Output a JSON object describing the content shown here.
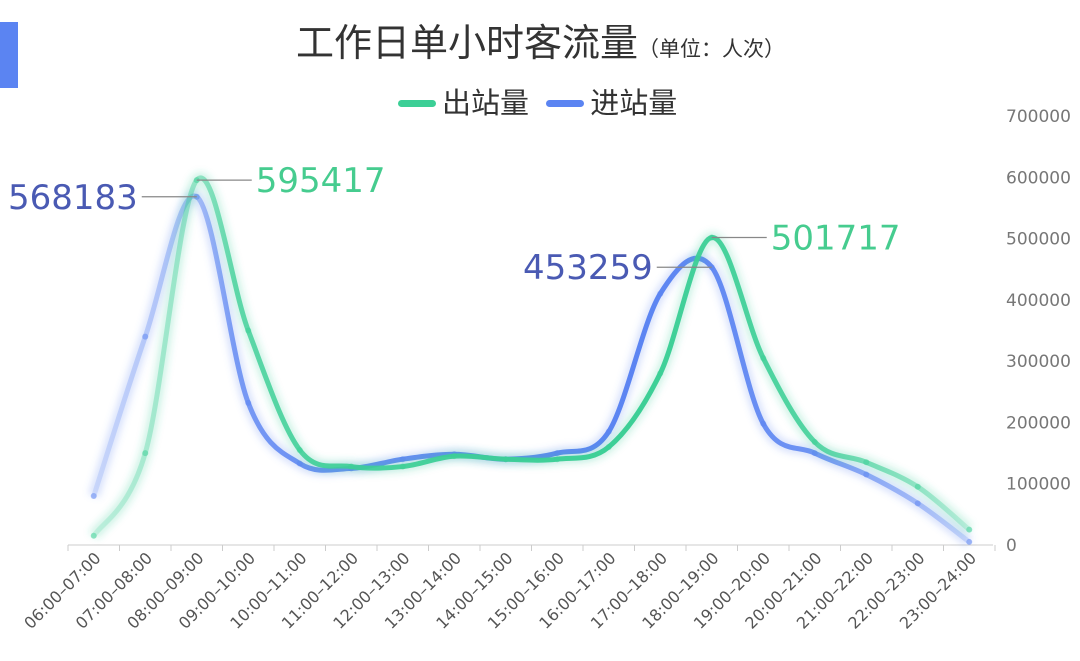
{
  "title": "工作日单小时客流量",
  "unit_label": "（单位：人次）",
  "colors": {
    "accent_bar": "#5b84f2",
    "out_series": "#3ccf96",
    "in_series": "#5b84f2",
    "out_label": "#46cc8f",
    "in_label": "#4a5ab3"
  },
  "chart_data": {
    "type": "line",
    "title": "工作日单小时客流量",
    "categories": [
      "06:00–07:00",
      "07:00–08:00",
      "08:00–09:00",
      "09:00–10:00",
      "10:00–11:00",
      "11:00–12:00",
      "12:00–13:00",
      "13:00–14:00",
      "14:00–15:00",
      "15:00–16:00",
      "16:00–17:00",
      "17:00–18:00",
      "18:00–19:00",
      "19:00–20:00",
      "20:00–21:00",
      "21:00–22:00",
      "22:00–23:00",
      "23:00–24:00"
    ],
    "series": [
      {
        "name": "出站量",
        "color": "#3ccf96",
        "values": [
          15000,
          150000,
          595417,
          350000,
          155000,
          128000,
          128000,
          145000,
          140000,
          140000,
          160000,
          280000,
          501717,
          305000,
          168000,
          135000,
          95000,
          25000
        ]
      },
      {
        "name": "进站量",
        "color": "#5b84f2",
        "values": [
          80000,
          340000,
          568183,
          232000,
          133000,
          125000,
          140000,
          148000,
          140000,
          150000,
          185000,
          410000,
          453259,
          198000,
          150000,
          115000,
          68000,
          5000
        ]
      }
    ],
    "peak_labels": [
      {
        "series": "出站量",
        "category": "08:00–09:00",
        "text": "595417"
      },
      {
        "series": "进站量",
        "category": "08:00–09:00",
        "text": "568183"
      },
      {
        "series": "出站量",
        "category": "18:00–19:00",
        "text": "501717"
      },
      {
        "series": "进站量",
        "category": "18:00–19:00",
        "text": "453259"
      }
    ],
    "ylim": [
      0,
      700000
    ],
    "yticks": [
      0,
      100000,
      200000,
      300000,
      400000,
      500000,
      600000,
      700000
    ],
    "y_axis_position": "right",
    "legend_position": "top-center",
    "grid": false
  }
}
